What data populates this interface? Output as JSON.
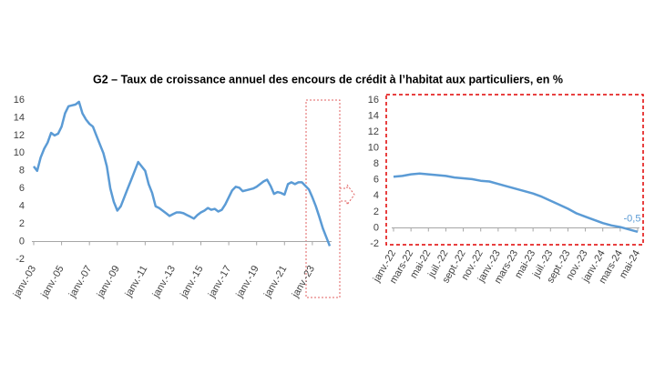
{
  "title": "G2 – Taux de croissance annuel des encours de crédit à l’habitat aux particuliers, en %",
  "chart_data": [
    {
      "type": "line",
      "categories": [
        "janv.-03",
        null,
        null,
        null,
        null,
        null,
        null,
        null,
        "janv.-05",
        null,
        null,
        null,
        null,
        null,
        null,
        null,
        "janv.-07",
        null,
        null,
        null,
        null,
        null,
        null,
        null,
        "janv.-09",
        null,
        null,
        null,
        null,
        null,
        null,
        null,
        "janv.-11",
        null,
        null,
        null,
        null,
        null,
        null,
        null,
        "janv.-13",
        null,
        null,
        null,
        null,
        null,
        null,
        null,
        "janv.-15",
        null,
        null,
        null,
        null,
        null,
        null,
        null,
        "janv.-17",
        null,
        null,
        null,
        null,
        null,
        null,
        null,
        "janv.-19",
        null,
        null,
        null,
        null,
        null,
        null,
        null,
        "janv.-21",
        null,
        null,
        null,
        null,
        null,
        null,
        null,
        "janv.-23",
        null,
        null,
        null,
        null,
        null
      ],
      "series": [
        {
          "color": "#5b9bd5",
          "values": [
            8.5,
            8.0,
            9.5,
            10.5,
            11.2,
            12.3,
            12.0,
            12.2,
            13.0,
            14.5,
            15.3,
            15.4,
            15.5,
            15.8,
            14.5,
            13.8,
            13.3,
            13.0,
            12.0,
            11.0,
            10.0,
            8.5,
            6.0,
            4.5,
            3.5,
            4.0,
            5.0,
            6.0,
            7.0,
            8.0,
            9.0,
            8.5,
            8.0,
            6.5,
            5.5,
            4.0,
            3.8,
            3.5,
            3.2,
            2.9,
            3.1,
            3.3,
            3.3,
            3.2,
            3.0,
            2.8,
            2.6,
            3.0,
            3.3,
            3.5,
            3.8,
            3.6,
            3.7,
            3.4,
            3.6,
            4.2,
            5.0,
            5.8,
            6.2,
            6.1,
            5.7,
            5.8,
            5.9,
            6.0,
            6.2,
            6.5,
            6.8,
            7.0,
            6.3,
            5.4,
            5.6,
            5.5,
            5.3,
            6.5,
            6.7,
            6.5,
            6.7,
            6.7,
            6.3,
            5.9,
            5.0,
            4.0,
            2.8,
            1.5,
            0.5,
            -0.5
          ]
        }
      ],
      "ylim": [
        -2,
        16
      ],
      "yticks": [
        -2,
        0,
        2,
        4,
        6,
        8,
        10,
        12,
        14,
        16
      ]
    },
    {
      "type": "line",
      "categories": [
        "janv.-22",
        null,
        "mars-22",
        null,
        "mai-22",
        null,
        "juil.-22",
        null,
        "sept.-22",
        null,
        "nov.-22",
        null,
        "janv.-23",
        null,
        "mars-23",
        null,
        "mai-23",
        null,
        "juil.-23",
        null,
        "sept.-23",
        null,
        "nov.-23",
        null,
        "janv.-24",
        null,
        "mars-24",
        null,
        "mai-24"
      ],
      "series": [
        {
          "color": "#5b9bd5",
          "values": [
            6.4,
            6.5,
            6.7,
            6.8,
            6.7,
            6.6,
            6.5,
            6.3,
            6.2,
            6.1,
            5.9,
            5.8,
            5.5,
            5.2,
            4.9,
            4.6,
            4.3,
            3.9,
            3.4,
            2.9,
            2.4,
            1.8,
            1.4,
            1.0,
            0.6,
            0.3,
            0.1,
            -0.2,
            -0.5
          ],
          "value_labels": [
            null,
            null,
            null,
            null,
            null,
            null,
            null,
            null,
            null,
            null,
            null,
            null,
            null,
            null,
            null,
            null,
            null,
            null,
            null,
            null,
            null,
            null,
            null,
            null,
            null,
            null,
            null,
            null,
            "-0,5"
          ]
        }
      ],
      "ylim": [
        -2,
        16
      ],
      "yticks": [
        -2,
        0,
        2,
        4,
        6,
        8,
        10,
        12,
        14,
        16
      ]
    }
  ]
}
